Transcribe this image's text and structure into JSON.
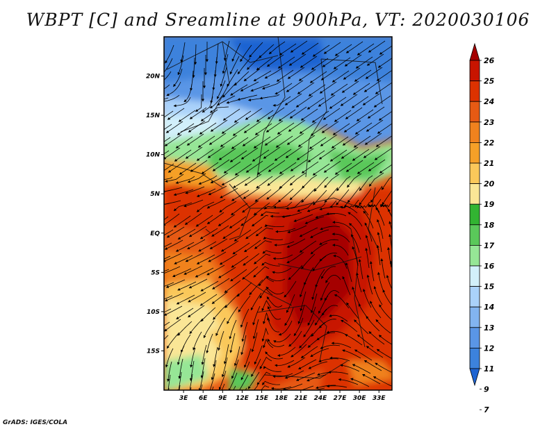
{
  "figure": {
    "title": "WBPT [C] and Sreamline at 900hPa, VT: 2020030106",
    "credit": "GrADS: IGES/COLA"
  },
  "map": {
    "variable": "Wet-bulb potential temperature (WBPT) with 900hPa streamlines",
    "lon_range": [
      0,
      35
    ],
    "lat_range": [
      -20,
      25
    ],
    "x_ticks": [
      "3E",
      "6E",
      "9E",
      "12E",
      "15E",
      "18E",
      "21E",
      "24E",
      "27E",
      "30E",
      "33E"
    ],
    "y_ticks": [
      "20N",
      "15N",
      "10N",
      "5N",
      "EQ",
      "5S",
      "10S",
      "15S"
    ]
  },
  "colorbar": {
    "labels": [
      "26",
      "25",
      "24",
      "23",
      "22",
      "21",
      "20",
      "19",
      "18",
      "17",
      "16",
      "15",
      "14",
      "13",
      "12",
      "11",
      "9",
      "7"
    ],
    "colors": [
      "#a50000",
      "#c81400",
      "#dc3200",
      "#e65a14",
      "#f0821e",
      "#f5a028",
      "#fac85a",
      "#fae696",
      "#32b432",
      "#5ac85a",
      "#96e696",
      "#d2f0fa",
      "#aad2fa",
      "#82b4f0",
      "#5a96e6",
      "#3c82dc",
      "#1e64d2"
    ]
  }
}
